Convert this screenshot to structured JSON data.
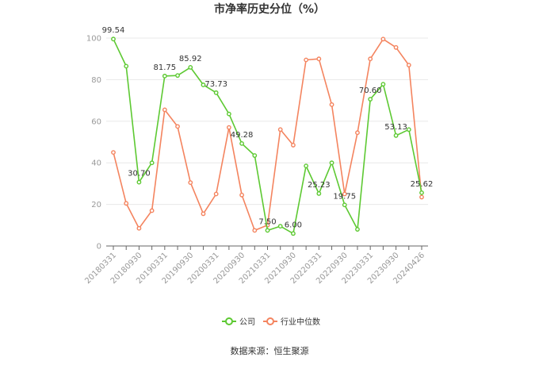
{
  "chart_data": {
    "type": "line",
    "title": "市净率历史分位（%）",
    "ylim": [
      0,
      100
    ],
    "yticks": [
      0,
      20,
      40,
      60,
      80,
      100
    ],
    "grid": true,
    "legend_position": "bottom",
    "x_tick_labels": [
      "20180331",
      "20180930",
      "20190331",
      "20190930",
      "20200331",
      "20200930",
      "20210331",
      "20210930",
      "20220331",
      "20220930",
      "20230331",
      "20230930",
      "20240426"
    ],
    "series": [
      {
        "name": "公司",
        "color": "#5dc932",
        "values": [
          99.54,
          86.5,
          30.7,
          40.0,
          81.75,
          82.0,
          85.92,
          77.5,
          73.73,
          63.5,
          49.28,
          43.5,
          7.5,
          9.5,
          6.0,
          38.5,
          25.23,
          40.0,
          19.75,
          8.0,
          70.6,
          77.8,
          53.13,
          56.0,
          25.62
        ]
      },
      {
        "name": "行业中位数",
        "color": "#f4845f",
        "values": [
          45.0,
          20.5,
          8.5,
          17.0,
          65.5,
          57.5,
          30.5,
          15.5,
          25.0,
          57.0,
          24.5,
          7.5,
          10.0,
          56.0,
          48.5,
          89.5,
          90.0,
          68.0,
          25.0,
          54.5,
          90.0,
          99.5,
          95.5,
          87.0,
          23.5
        ]
      }
    ],
    "data_labels": [
      {
        "series": 0,
        "index": 0,
        "text": "99.54"
      },
      {
        "series": 0,
        "index": 2,
        "text": "30.70"
      },
      {
        "series": 0,
        "index": 4,
        "text": "81.75"
      },
      {
        "series": 0,
        "index": 6,
        "text": "85.92"
      },
      {
        "series": 0,
        "index": 8,
        "text": "73.73"
      },
      {
        "series": 0,
        "index": 10,
        "text": "49.28"
      },
      {
        "series": 0,
        "index": 12,
        "text": "7.50"
      },
      {
        "series": 0,
        "index": 14,
        "text": "6.00"
      },
      {
        "series": 0,
        "index": 16,
        "text": "25.23"
      },
      {
        "series": 0,
        "index": 18,
        "text": "19.75"
      },
      {
        "series": 0,
        "index": 20,
        "text": "70.60"
      },
      {
        "series": 0,
        "index": 22,
        "text": "53.13"
      },
      {
        "series": 0,
        "index": 24,
        "text": "25.62"
      }
    ]
  },
  "source": "数据来源：恒生聚源"
}
